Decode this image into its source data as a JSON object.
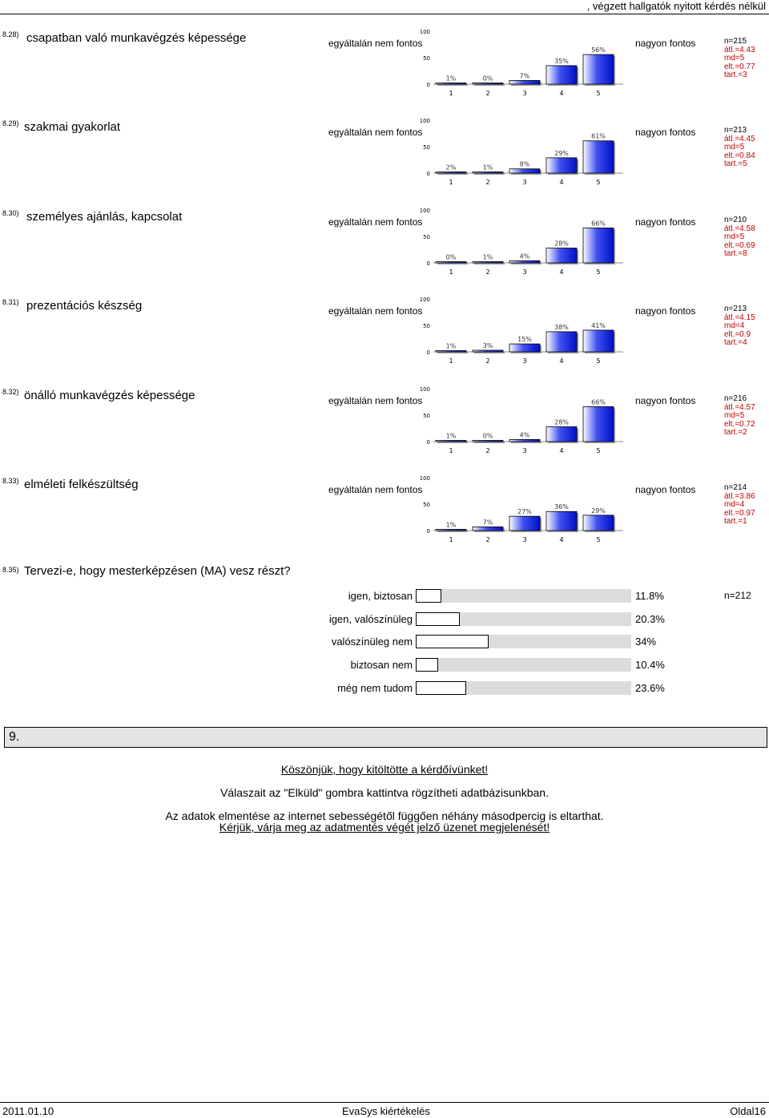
{
  "header": {
    "title": ", végzett hallgatók nyitott kérdés nélkül"
  },
  "scale": {
    "left_label": "egyáltalán nem fontos",
    "right_label": "nagyon fontos",
    "ticks": [
      "0",
      "50",
      "100"
    ],
    "categories": [
      "1",
      "2",
      "3",
      "4",
      "5"
    ]
  },
  "questions": [
    {
      "num": "8.28)",
      "label": "csapatban való munkavégzés képessége",
      "stats": {
        "n": "n=215",
        "atl": "átl.=4.43",
        "md": "md=5",
        "elt": "elt.=0.77",
        "tart": "tart.=3"
      }
    },
    {
      "num": "8.29)",
      "label": "szakmai gyakorlat",
      "stats": {
        "n": "n=213",
        "atl": "átl.=4.45",
        "md": "md=5",
        "elt": "elt.=0.84",
        "tart": "tart.=5"
      }
    },
    {
      "num": "8.30)",
      "label": "személyes ajánlás, kapcsolat",
      "stats": {
        "n": "n=210",
        "atl": "átl.=4.58",
        "md": "md=5",
        "elt": "elt.=0.69",
        "tart": "tart.=8"
      }
    },
    {
      "num": "8.31)",
      "label": "prezentációs készség",
      "stats": {
        "n": "n=213",
        "atl": "átl.=4.15",
        "md": "md=4",
        "elt": "elt.=0.9",
        "tart": "tart.=4"
      }
    },
    {
      "num": "8.32)",
      "label": "önálló munkavégzés képessége",
      "stats": {
        "n": "n=216",
        "atl": "átl.=4.57",
        "md": "md=5",
        "elt": "elt.=0.72",
        "tart": "tart.=2"
      }
    },
    {
      "num": "8.33)",
      "label": "elméleti felkészültség",
      "stats": {
        "n": "n=214",
        "atl": "átl.=3.86",
        "md": "md=4",
        "elt": "elt.=0.97",
        "tart": "tart.=1"
      }
    }
  ],
  "chart_data": [
    {
      "type": "bar",
      "categories": [
        "1",
        "2",
        "3",
        "4",
        "5"
      ],
      "values": [
        1,
        0,
        7,
        35,
        56
      ],
      "labels": [
        "1%",
        "0%",
        "7%",
        "35%",
        "56%"
      ],
      "ylim": [
        0,
        100
      ]
    },
    {
      "type": "bar",
      "categories": [
        "1",
        "2",
        "3",
        "4",
        "5"
      ],
      "values": [
        2,
        1,
        8,
        29,
        61
      ],
      "labels": [
        "2%",
        "1%",
        "8%",
        "29%",
        "61%"
      ],
      "ylim": [
        0,
        100
      ]
    },
    {
      "type": "bar",
      "categories": [
        "1",
        "2",
        "3",
        "4",
        "5"
      ],
      "values": [
        0,
        1,
        4,
        28,
        66
      ],
      "labels": [
        "0%",
        "1%",
        "4%",
        "28%",
        "66%"
      ],
      "ylim": [
        0,
        100
      ]
    },
    {
      "type": "bar",
      "categories": [
        "1",
        "2",
        "3",
        "4",
        "5"
      ],
      "values": [
        1,
        3,
        15,
        38,
        41
      ],
      "labels": [
        "1%",
        "3%",
        "15%",
        "38%",
        "41%"
      ],
      "ylim": [
        0,
        100
      ]
    },
    {
      "type": "bar",
      "categories": [
        "1",
        "2",
        "3",
        "4",
        "5"
      ],
      "values": [
        1,
        0,
        4,
        28,
        66
      ],
      "labels": [
        "1%",
        "0%",
        "4%",
        "28%",
        "66%"
      ],
      "ylim": [
        0,
        100
      ]
    },
    {
      "type": "bar",
      "categories": [
        "1",
        "2",
        "3",
        "4",
        "5"
      ],
      "values": [
        1,
        7,
        27,
        36,
        29
      ],
      "labels": [
        "1%",
        "7%",
        "27%",
        "36%",
        "29%"
      ],
      "ylim": [
        0,
        100
      ]
    }
  ],
  "single_choice": {
    "num": "8.35)",
    "label": "Tervezi-e, hogy mesterképzésen (MA) vesz részt?",
    "n": "n=212",
    "options": [
      {
        "label": "igen, biztosan",
        "pct": "11.8%",
        "value": 11.8
      },
      {
        "label": "igen, valószínüleg",
        "pct": "20.3%",
        "value": 20.3
      },
      {
        "label": "valószínüleg nem",
        "pct": "34%",
        "value": 34
      },
      {
        "label": "biztosan nem",
        "pct": "10.4%",
        "value": 10.4
      },
      {
        "label": "még nem tudom",
        "pct": "23.6%",
        "value": 23.6
      }
    ]
  },
  "section": {
    "num": "9."
  },
  "thanks": {
    "line1": "Köszönjük, hogy kitöltötte a kérdőívünket!",
    "line2": "Válaszait az \"Elküld\" gombra kattintva rögzítheti adatbázisunkban.",
    "line3": "Az adatok elmentése az internet sebességétől függően néhány másodpercig is eltarthat.",
    "line4": "Kérjük, várja meg az adatmentés végét jelző üzenet megjelenését!"
  },
  "footer": {
    "date": "2011.01.10",
    "center": "EvaSys kiértékelés",
    "page": "Oldal16"
  }
}
